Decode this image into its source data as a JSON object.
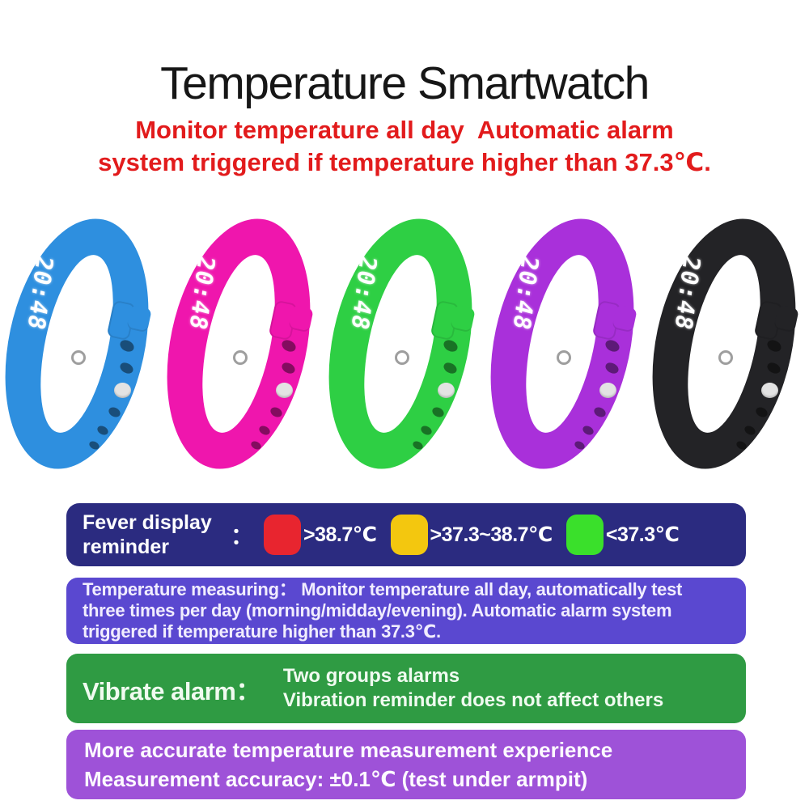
{
  "header": {
    "title": "Temperature Smartwatch",
    "subtitle_color": "#e21b1c",
    "subtitle_line1": "Monitor temperature all day  Automatic alarm",
    "subtitle_line2": "system triggered if temperature higher than 37.3℃."
  },
  "watches": {
    "display_time": "20:48",
    "items": [
      {
        "name": "blue",
        "color": "#2e8fdf"
      },
      {
        "name": "pink",
        "color": "#ef16ad"
      },
      {
        "name": "green",
        "color": "#2ecf44"
      },
      {
        "name": "purple",
        "color": "#a930da"
      },
      {
        "name": "black",
        "color": "#232326"
      }
    ]
  },
  "fever_banner": {
    "bg": "#2b2b80",
    "label_line1": "Fever display",
    "label_line2": "reminder",
    "colon": "：",
    "legend": [
      {
        "name": "red",
        "color": "#e8252f",
        "label": ">38.7℃"
      },
      {
        "name": "yellow",
        "color": "#f3c70f",
        "label": ">37.3~38.7℃"
      },
      {
        "name": "green",
        "color": "#3ae02b",
        "label": "<37.3℃"
      }
    ]
  },
  "measuring_banner": {
    "bg": "#5a48d0",
    "line1": "Temperature measuring： Monitor temperature all day, automatically test",
    "line2": "three times per day (morning/midday/evening). Automatic alarm system",
    "line3": "triggered if temperature higher than 37.3℃."
  },
  "vibrate_banner": {
    "bg": "#2f9b43",
    "label": "Vibrate alarm：",
    "line1": "Two groups alarms",
    "line2": "Vibration reminder does not affect others"
  },
  "accuracy_banner": {
    "bg": "#9e52d8",
    "line1": "More accurate temperature measurement experience",
    "line2": "Measurement accuracy: ±0.1℃ (test under armpit)"
  }
}
